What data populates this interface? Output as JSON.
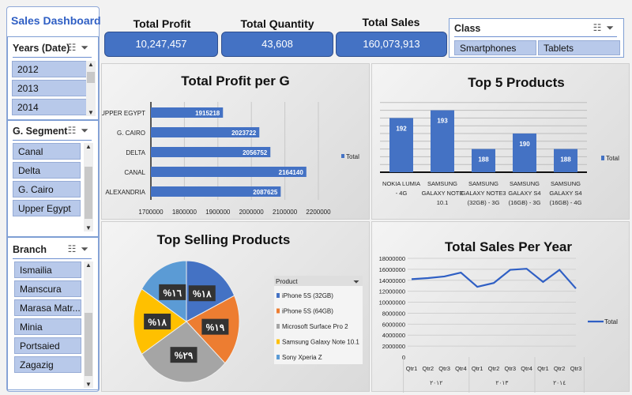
{
  "title": "Sales Dashboard",
  "slicers": {
    "years": {
      "label": "Years (Date)",
      "items": [
        "2012",
        "2013",
        "2014"
      ]
    },
    "segment": {
      "label": "G. Segment",
      "items": [
        "Canal",
        "Delta",
        "G. Cairo",
        "Upper Egypt"
      ]
    },
    "branch": {
      "label": "Branch",
      "items": [
        "Ismailia",
        "Manscura",
        "Marasa Matr...",
        "Minia",
        "Portsaied",
        "Zagazig"
      ]
    },
    "class": {
      "label": "Class",
      "items": [
        "Smartphones",
        "Tablets"
      ]
    }
  },
  "icons": {
    "multiselect": "multi-select-icon",
    "clear_filter": "clear-filter-icon"
  },
  "kpis": [
    {
      "label": "Total Profit",
      "value": "10,247,457"
    },
    {
      "label": "Total Quantity",
      "value": "43,608"
    },
    {
      "label": "Total Sales",
      "value": "160,073,913"
    }
  ],
  "colors": {
    "accent": "#4472c4",
    "pie": [
      "#4472c4",
      "#ed7d31",
      "#a5a5a5",
      "#ffc000",
      "#5b9bd5"
    ]
  },
  "chart_data": [
    {
      "type": "bar",
      "orientation": "horizontal",
      "title": "Total Profit per G",
      "categories": [
        "UPPER EGYPT",
        "G. CAIRO",
        "DELTA",
        "CANAL",
        "ALEXANDRIA"
      ],
      "values": [
        1915218,
        2023722,
        2056752,
        2164140,
        2087625
      ],
      "xlim": [
        1700000,
        2200000
      ],
      "xticks": [
        "1700000",
        "1800000",
        "1900000",
        "2000000",
        "2100000",
        "2200000"
      ],
      "legend": "Total",
      "legend_position": "right",
      "grid": true
    },
    {
      "type": "bar",
      "title": "Top 5 Products",
      "categories": [
        "NOKIA LUMIA - 4G",
        "SAMSUNG GALAXY NOTE 10.1",
        "SAMSUNG GALAXY NOTE3 (32GB) - 3G",
        "SAMSUNG GALAXY S4 (16GB) - 3G",
        "SAMSUNG GALAXY S4 (16GB) - 4G"
      ],
      "values": [
        192,
        193,
        188,
        190,
        188
      ],
      "ylim": [
        185,
        194
      ],
      "legend": "Total",
      "legend_position": "right",
      "grid": true
    },
    {
      "type": "pie",
      "title": "Top Selling Products",
      "legend_title": "Product",
      "categories": [
        "iPhone 5S (32GB)",
        "iPhone 5S (64GB)",
        "Microsoft Surface Pro 2",
        "Samsung Galaxy Note 10.1",
        "Sony Xperia Z"
      ],
      "values": [
        18,
        19,
        29,
        18,
        16
      ],
      "labels": [
        "%١٨",
        "%١٩",
        "%٢٩",
        "%١٨",
        "%١٦"
      ],
      "legend_position": "right"
    },
    {
      "type": "line",
      "title": "Total Sales Per Year",
      "x": [
        "Qtr1",
        "Qtr2",
        "Qtr3",
        "Qtr4",
        "Qtr1",
        "Qtr2",
        "Qtr3",
        "Qtr4",
        "Qtr1",
        "Qtr2",
        "Qtr3"
      ],
      "groups": [
        {
          "label": "٢٠١٢",
          "count": 4
        },
        {
          "label": "٢٠١٣",
          "count": 4
        },
        {
          "label": "٢٠١٤",
          "count": 3
        }
      ],
      "values": [
        14200000,
        14400000,
        14700000,
        15400000,
        12800000,
        13500000,
        15900000,
        16100000,
        13700000,
        15900000,
        12500000
      ],
      "ylim": [
        0,
        18000000
      ],
      "yticks": [
        "0",
        "2000000",
        "4000000",
        "6000000",
        "8000000",
        "10000000",
        "12000000",
        "14000000",
        "16000000",
        "18000000"
      ],
      "legend": "Total",
      "legend_position": "right",
      "grid": true
    }
  ]
}
